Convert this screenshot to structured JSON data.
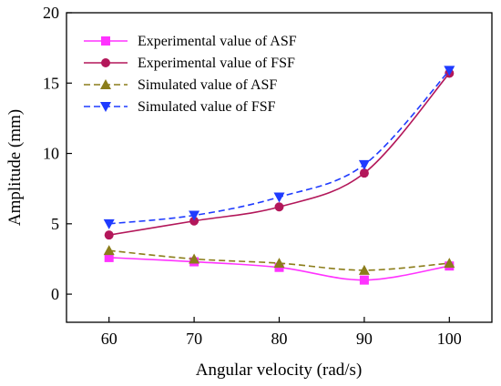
{
  "chart_data": {
    "type": "line",
    "xlabel": "Angular velocity (rad/s)",
    "ylabel": "Amplitude (mm)",
    "xlim": [
      55,
      105
    ],
    "ylim": [
      -2,
      20
    ],
    "x_ticks": [
      60,
      70,
      80,
      90,
      100
    ],
    "y_ticks": [
      0,
      5,
      10,
      15,
      20
    ],
    "x": [
      60,
      70,
      80,
      90,
      100
    ],
    "grid": false,
    "legend_position": "top-left",
    "series": [
      {
        "name": "Experimental value of ASF",
        "values": [
          2.6,
          2.3,
          1.9,
          1.0,
          2.0
        ],
        "color": "#ff33ff",
        "marker": "square",
        "dash": "solid"
      },
      {
        "name": "Experimental value of FSF",
        "values": [
          4.2,
          5.2,
          6.2,
          8.6,
          15.7
        ],
        "color": "#b3175a",
        "marker": "circle",
        "dash": "solid"
      },
      {
        "name": "Simulated value of ASF",
        "values": [
          3.1,
          2.5,
          2.2,
          1.7,
          2.2
        ],
        "color": "#8b7d1a",
        "marker": "triangle-up",
        "dash": "dashed"
      },
      {
        "name": "Simulated value of FSF",
        "values": [
          5.0,
          5.6,
          6.9,
          9.2,
          15.9
        ],
        "color": "#1f3bff",
        "marker": "triangle-down",
        "dash": "dashed"
      }
    ]
  }
}
